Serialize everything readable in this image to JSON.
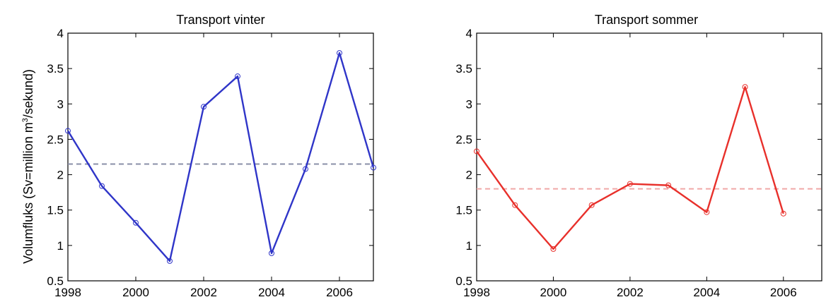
{
  "figure": {
    "ylabel_prefix": "Volumfluks (Sv=million m",
    "ylabel_sup": "3",
    "ylabel_suffix": "/sekund)"
  },
  "chart_data": [
    {
      "type": "line",
      "title": "Transport vinter",
      "xlabel": "",
      "ylabel": "Volumfluks (Sv=million m3/sekund)",
      "xlim": [
        1998,
        2007
      ],
      "ylim": [
        0.5,
        4
      ],
      "xticks": [
        1998,
        2000,
        2002,
        2004,
        2006
      ],
      "yticks": [
        0.5,
        1,
        1.5,
        2,
        2.5,
        3,
        3.5,
        4
      ],
      "series": [
        {
          "color": "#2f35c8",
          "marker": "circle",
          "x": [
            1998,
            1999,
            2000,
            2001,
            2002,
            2003,
            2004,
            2005,
            2006,
            2007
          ],
          "y": [
            2.62,
            1.84,
            1.32,
            0.78,
            2.96,
            3.39,
            0.89,
            2.08,
            3.72,
            2.1
          ]
        }
      ],
      "reference_line": {
        "y": 2.15,
        "style": "dashed",
        "color": "#8a8fa8"
      },
      "grid": false,
      "legend": "none"
    },
    {
      "type": "line",
      "title": "Transport sommer",
      "xlabel": "",
      "ylabel": "",
      "xlim": [
        1998,
        2007
      ],
      "ylim": [
        0.5,
        4
      ],
      "xticks": [
        1998,
        2000,
        2002,
        2004,
        2006
      ],
      "yticks": [
        0.5,
        1,
        1.5,
        2,
        2.5,
        3,
        3.5,
        4
      ],
      "series": [
        {
          "color": "#e8302b",
          "marker": "circle",
          "x": [
            1998,
            1999,
            2000,
            2001,
            2002,
            2003,
            2004,
            2005,
            2006
          ],
          "y": [
            2.33,
            1.57,
            0.95,
            1.57,
            1.87,
            1.85,
            1.47,
            3.24,
            1.45
          ]
        }
      ],
      "reference_line": {
        "y": 1.8,
        "style": "dashed",
        "color": "#f0a8a6"
      },
      "grid": false,
      "legend": "none"
    }
  ]
}
